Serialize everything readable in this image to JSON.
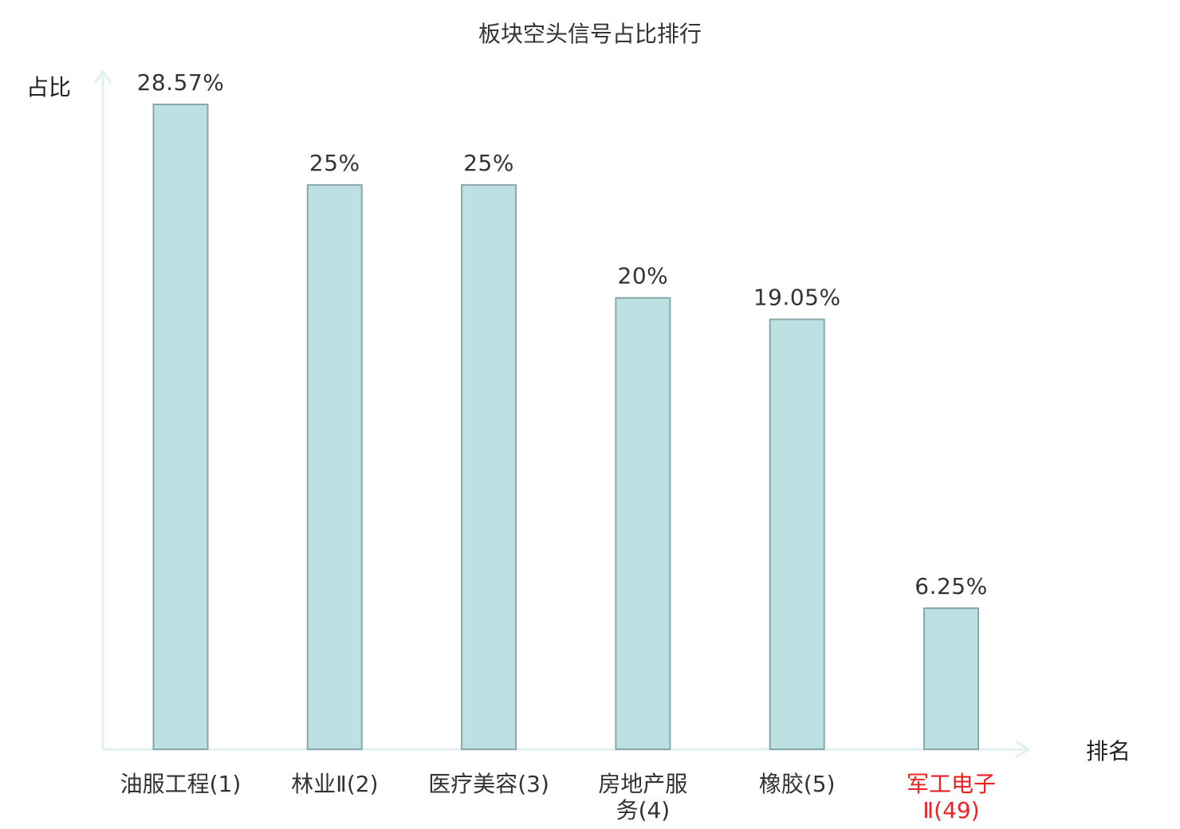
{
  "chart_data": {
    "type": "bar",
    "title": "板块空头信号占比排行",
    "ylabel": "占比",
    "xlabel": "排名",
    "categories": [
      [
        "油服工程(1)"
      ],
      [
        "林业Ⅱ(2)"
      ],
      [
        "医疗美容(3)"
      ],
      [
        "房地产服",
        "务(4)"
      ],
      [
        "橡胶(5)"
      ],
      [
        "军工电子",
        "Ⅱ(49)"
      ]
    ],
    "values": [
      28.57,
      25,
      25,
      20,
      19.05,
      6.25
    ],
    "value_labels": [
      "28.57%",
      "25%",
      "25%",
      "20%",
      "19.05%",
      "6.25%"
    ],
    "highlight_index": 5,
    "ylim": [
      0,
      28.57
    ],
    "grid": false,
    "colors": {
      "bar_fill": "#bde0e3",
      "bar_stroke": "#8aa8ab",
      "axis": "#e0f1ef",
      "label_default": "#333333",
      "label_highlight": "#ee2222"
    }
  }
}
